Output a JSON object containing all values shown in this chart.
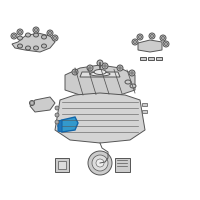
{
  "background_color": "#ffffff",
  "line_color": "#555555",
  "highlight_color": "#3399cc",
  "fig_width": 2.0,
  "fig_height": 2.0,
  "dpi": 100
}
